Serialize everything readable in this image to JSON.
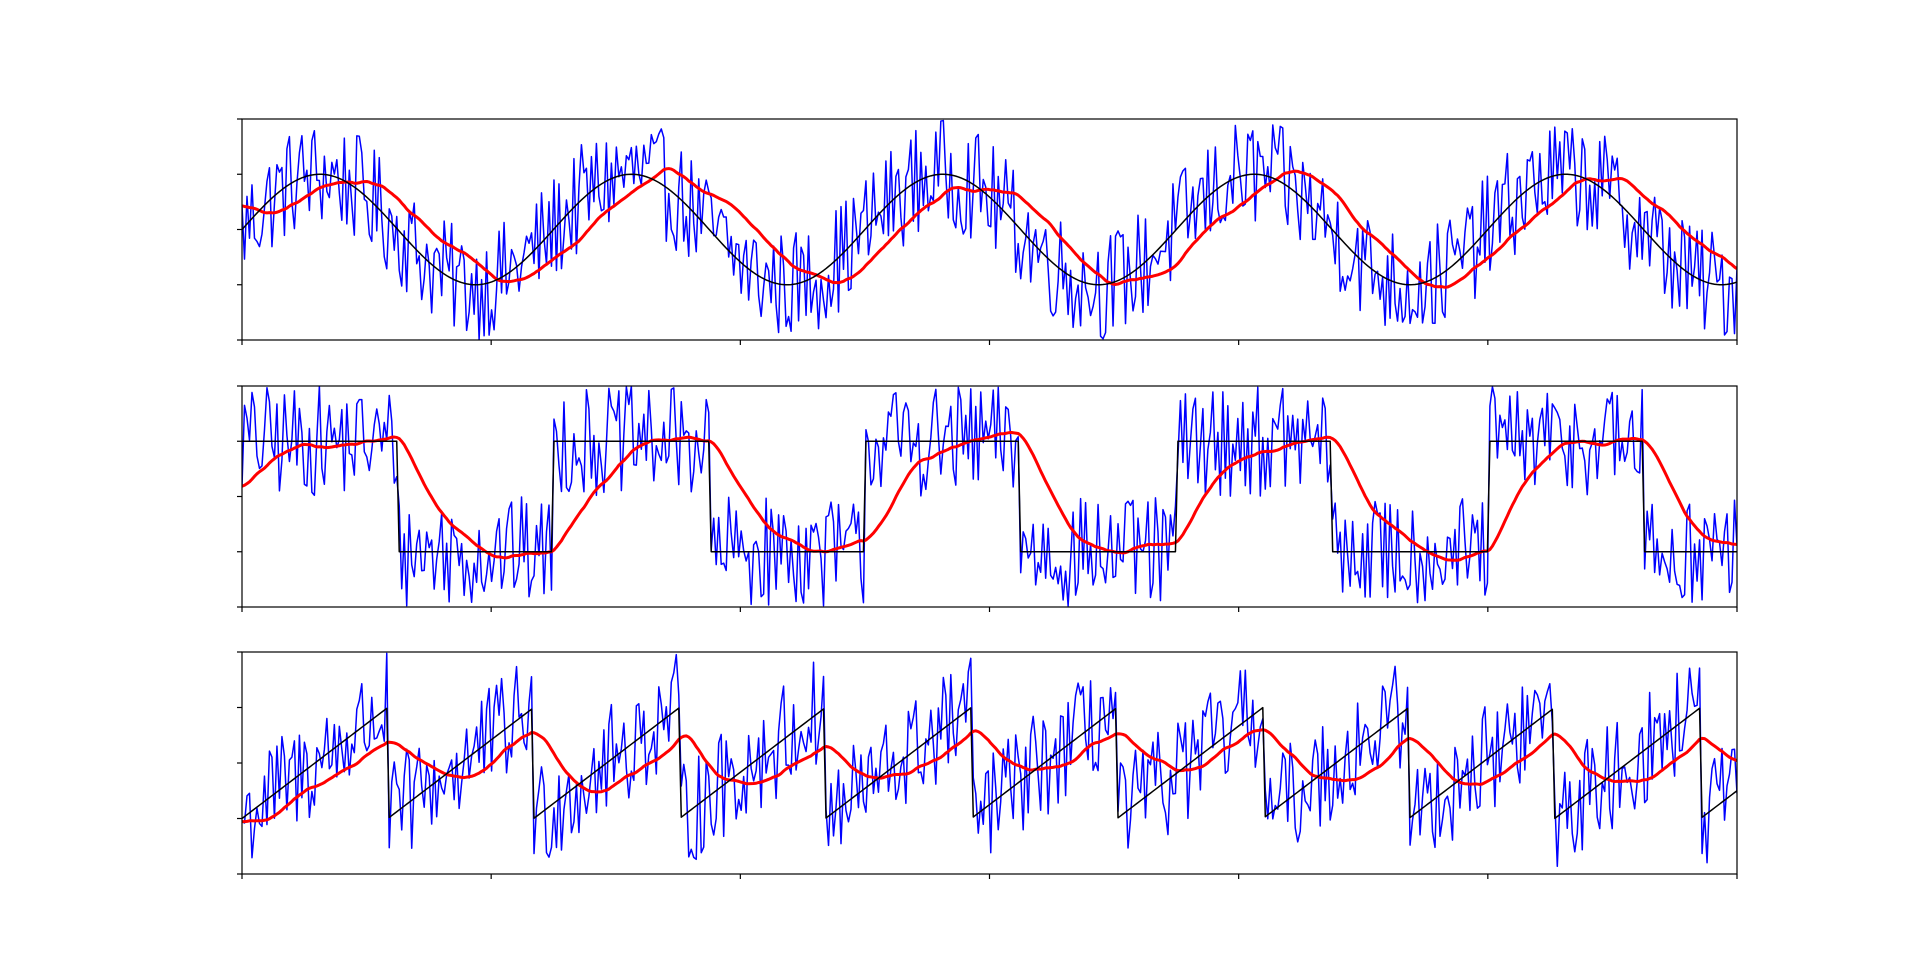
{
  "chart_data": [
    {
      "type": "line",
      "waveform": "sine",
      "title": "",
      "xlabel": "",
      "ylabel": "",
      "xlim": [
        0,
        6
      ],
      "ylim": [
        -2,
        2
      ],
      "x_tick_values": [
        0,
        1,
        2,
        3,
        4,
        5,
        6
      ],
      "y_tick_values": [
        -2,
        -1,
        0,
        1,
        2
      ],
      "tick_labels_shown": false,
      "grid": false,
      "legend": "none",
      "samples": 600,
      "cycles": 4.8,
      "amplitude": 1.0,
      "noise_amplitude": 1.0,
      "smoothing_lag_fraction": 0.015,
      "series": [
        {
          "role": "noisy-signal",
          "color": "#0000ff",
          "linewidth": 1.5
        },
        {
          "role": "smoothed",
          "color": "#ff0000",
          "linewidth": 3
        },
        {
          "role": "clean-signal",
          "color": "#000000",
          "linewidth": 1.5
        }
      ]
    },
    {
      "type": "line",
      "waveform": "square",
      "title": "",
      "xlabel": "",
      "ylabel": "",
      "xlim": [
        0,
        6
      ],
      "ylim": [
        -2,
        2
      ],
      "x_tick_values": [
        0,
        1,
        2,
        3,
        4,
        5,
        6
      ],
      "y_tick_values": [
        -2,
        -1,
        0,
        1,
        2
      ],
      "tick_labels_shown": false,
      "grid": false,
      "legend": "none",
      "samples": 600,
      "cycles": 4.8,
      "amplitude": 1.0,
      "noise_amplitude": 1.0,
      "smoothing_lag_fraction": 0.015,
      "series": [
        {
          "role": "noisy-signal",
          "color": "#0000ff",
          "linewidth": 1.5
        },
        {
          "role": "smoothed",
          "color": "#ff0000",
          "linewidth": 3
        },
        {
          "role": "clean-signal",
          "color": "#000000",
          "linewidth": 1.5
        }
      ]
    },
    {
      "type": "line",
      "waveform": "sawtooth",
      "title": "",
      "xlabel": "",
      "ylabel": "",
      "xlim": [
        0,
        6
      ],
      "ylim": [
        -2,
        2
      ],
      "x_tick_values": [
        0,
        1,
        2,
        3,
        4,
        5,
        6
      ],
      "y_tick_values": [
        -2,
        -1,
        0,
        1,
        2
      ],
      "tick_labels_shown": false,
      "grid": false,
      "legend": "none",
      "samples": 600,
      "cycles": 10.25,
      "amplitude": 1.0,
      "noise_amplitude": 1.0,
      "smoothing_lag_fraction": 0.015,
      "series": [
        {
          "role": "noisy-signal",
          "color": "#0000ff",
          "linewidth": 1.5
        },
        {
          "role": "smoothed",
          "color": "#ff0000",
          "linewidth": 3
        },
        {
          "role": "clean-signal",
          "color": "#000000",
          "linewidth": 1.5
        }
      ]
    }
  ]
}
